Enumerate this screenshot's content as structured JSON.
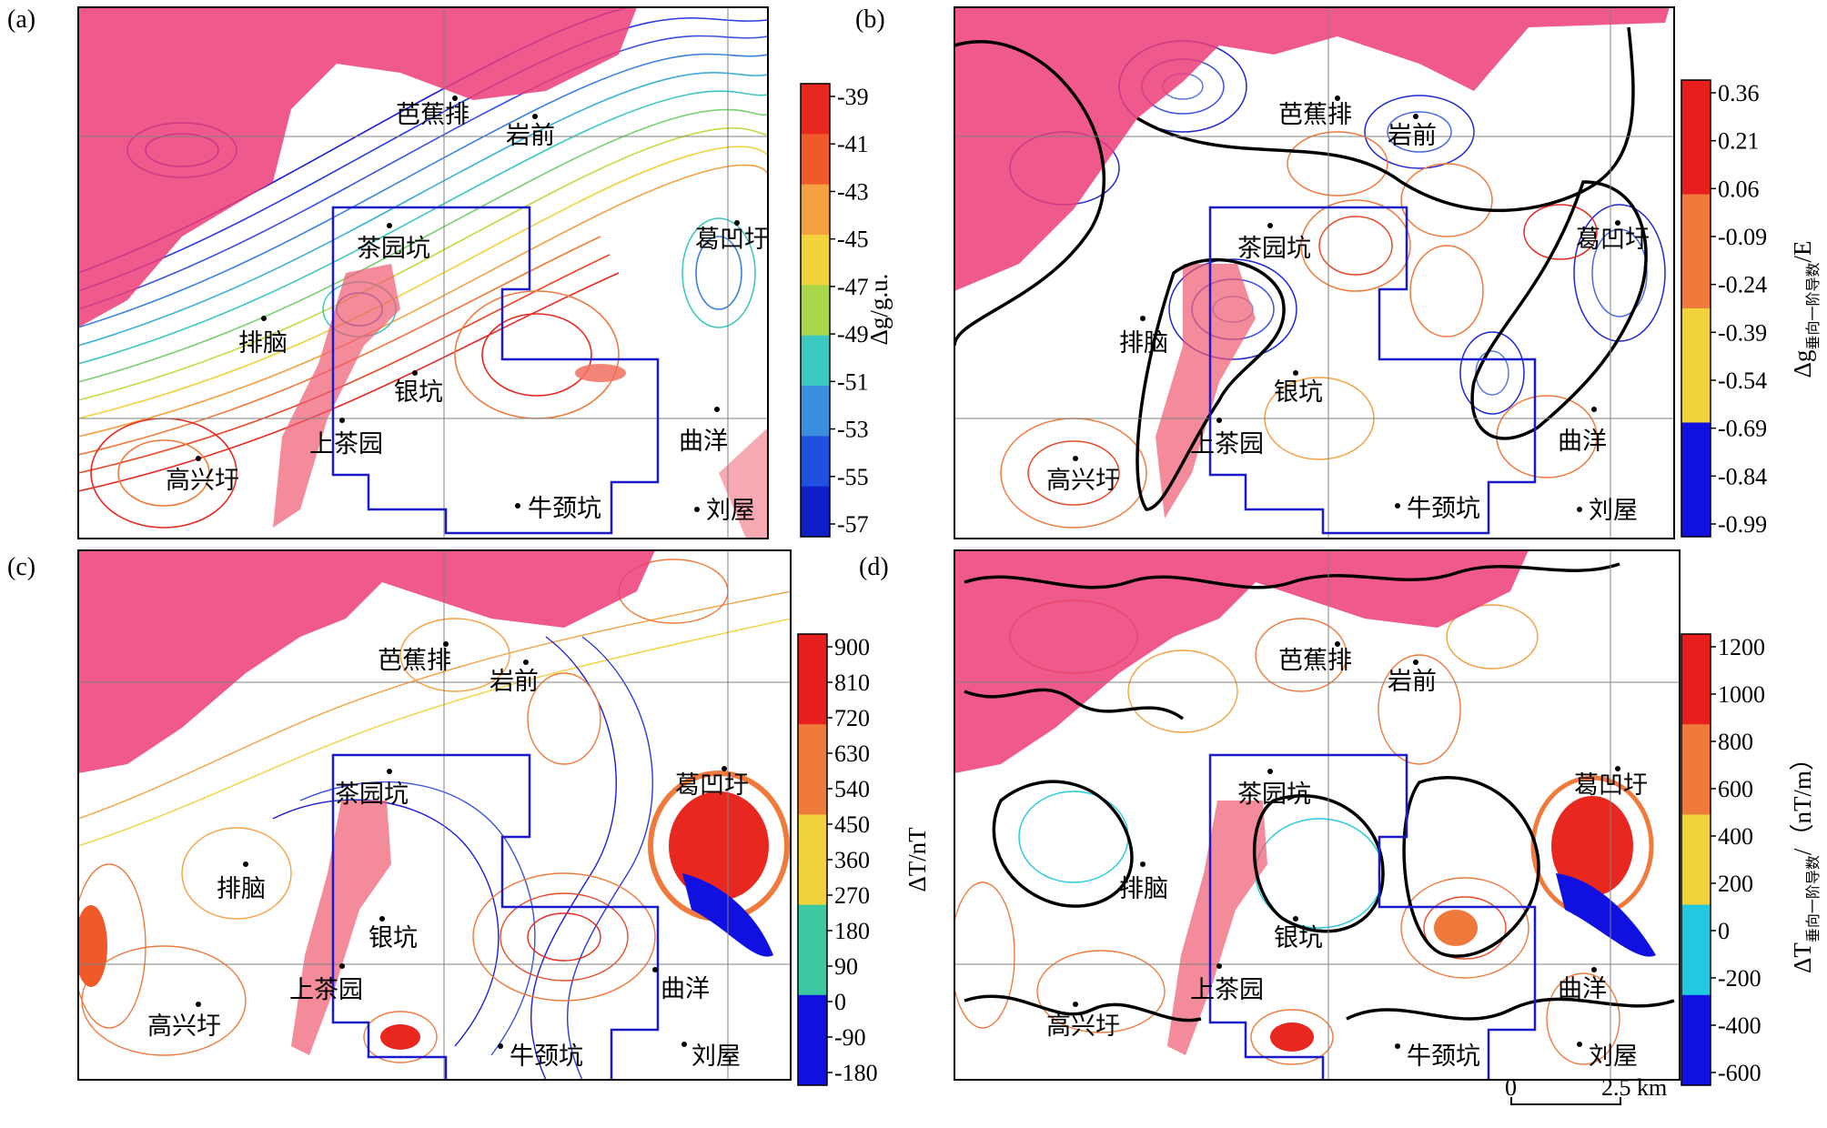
{
  "figure": {
    "panels": [
      {
        "id": "a",
        "label": "(a)",
        "type": "gravity",
        "places": [
          "芭蕉排",
          "岩前",
          "葛凹圩",
          "茶园坑",
          "排脑",
          "银坑",
          "上茶园",
          "曲洋",
          "高兴圩",
          "牛颈坑",
          "刘屋"
        ],
        "colorbar": {
          "ticks": [
            "-39",
            "-41",
            "-43",
            "-45",
            "-47",
            "-49",
            "-51",
            "-53",
            "-55",
            "-57"
          ],
          "unit": "Δg/g.u.",
          "colors": [
            "#e8281e",
            "#f05a28",
            "#f5a040",
            "#f2d23a",
            "#a8d84a",
            "#3cc8c0",
            "#3a8ee0",
            "#2050e0",
            "#1020c8"
          ]
        }
      },
      {
        "id": "b",
        "label": "(b)",
        "type": "gravity_derivative",
        "places": [
          "芭蕉排",
          "岩前",
          "葛凹圩",
          "茶园坑",
          "排脑",
          "银坑",
          "上茶园",
          "曲洋",
          "高兴圩",
          "牛颈坑",
          "刘屋"
        ],
        "colorbar": {
          "ticks": [
            "0.36",
            "0.21",
            "0.06",
            "-0.09",
            "-0.24",
            "-0.39",
            "-0.54",
            "-0.69",
            "-0.84",
            "-0.99"
          ],
          "unit_main": "Δg",
          "unit_sub": "垂向一阶导数",
          "unit_tail": "/E",
          "colors": [
            "#e81e1e",
            "#f07a3c",
            "#f2d23a",
            "#1010e0"
          ]
        }
      },
      {
        "id": "c",
        "label": "(c)",
        "type": "magnetic",
        "places": [
          "芭蕉排",
          "岩前",
          "葛凹圩",
          "茶园坑",
          "排脑",
          "银坑",
          "上茶园",
          "曲洋",
          "高兴圩",
          "牛颈坑",
          "刘屋"
        ],
        "colorbar": {
          "ticks": [
            "900",
            "810",
            "720",
            "630",
            "540",
            "450",
            "360",
            "270",
            "180",
            "90",
            "0",
            "-90",
            "-180"
          ],
          "unit": "ΔT/nT",
          "colors": [
            "#e81e1e",
            "#f07a3c",
            "#f2d23a",
            "#3cc8a0",
            "#1010e0"
          ]
        }
      },
      {
        "id": "d",
        "label": "(d)",
        "type": "magnetic_derivative",
        "places": [
          "芭蕉排",
          "岩前",
          "葛凹圩",
          "茶园坑",
          "排脑",
          "银坑",
          "上茶园",
          "曲洋",
          "高兴圩",
          "牛颈坑",
          "刘屋"
        ],
        "colorbar": {
          "ticks": [
            "1200",
            "1000",
            "800",
            "600",
            "400",
            "200",
            "0",
            "-200",
            "-400",
            "-600"
          ],
          "unit_main": "ΔT",
          "unit_sub": "垂向一阶导数",
          "unit_tail": "/（nT/m）",
          "colors": [
            "#e81e1e",
            "#f07a3c",
            "#f2d23a",
            "#22c8e0",
            "#1010e0"
          ]
        }
      }
    ],
    "scale_bar": {
      "start": "0",
      "end": "2.5 km"
    }
  }
}
